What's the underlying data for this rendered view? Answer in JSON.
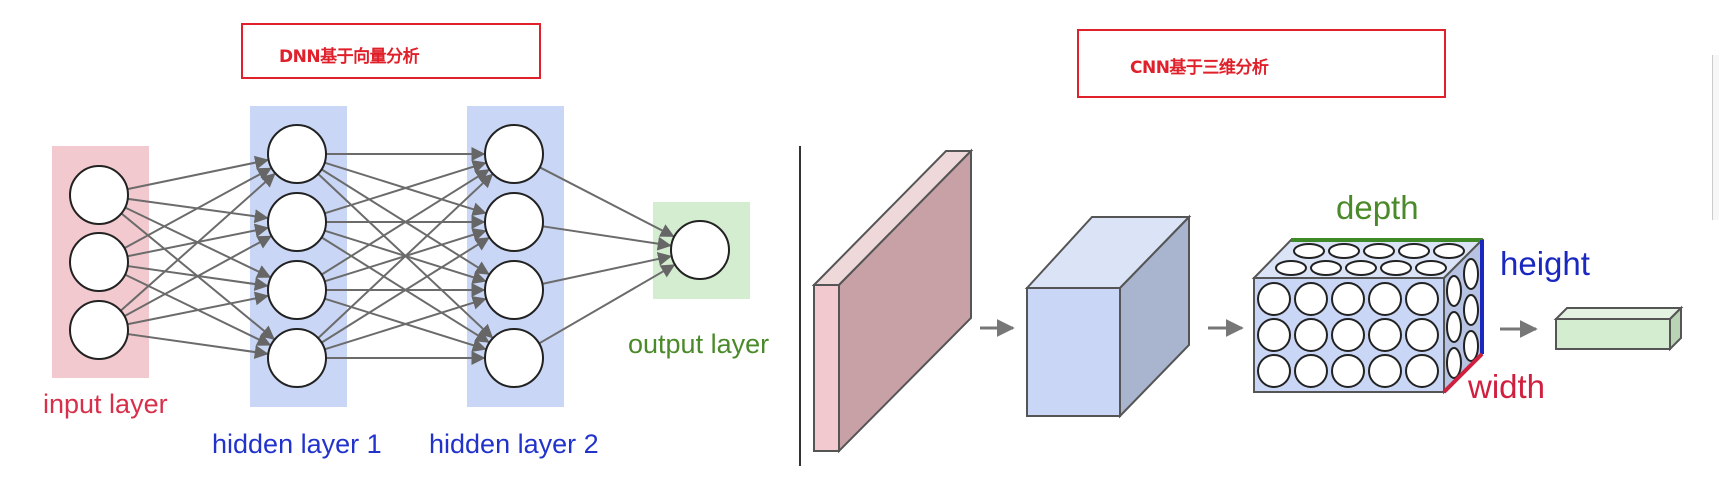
{
  "dnn": {
    "title": "DNN基于向量分析",
    "input_label": "input layer",
    "hidden1_label": "hidden layer 1",
    "hidden2_label": "hidden layer 2",
    "output_label": "output layer"
  },
  "cnn": {
    "title": "CNN基于三维分析",
    "depth_label": "depth",
    "height_label": "height",
    "width_label": "width"
  },
  "colors": {
    "red": "#e0202a",
    "input_layer_fill": "#f2c9ce",
    "hidden_layer_fill": "#c9d6f5",
    "output_layer_fill": "#d4ecd0",
    "input_text": "#d8304a",
    "hidden_text": "#2233cc",
    "output_text": "#4a8a2a",
    "depth_text": "#4a8a2a",
    "height_text": "#1a28c0",
    "width_text": "#d02040"
  }
}
